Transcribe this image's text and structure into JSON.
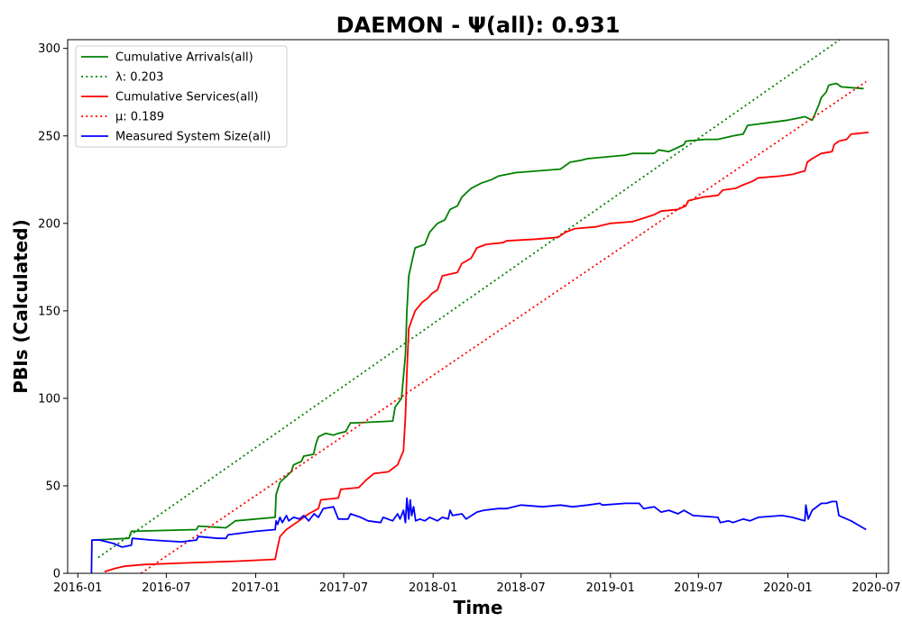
{
  "chart_data": {
    "type": "line",
    "title": "DAEMON -  Ψ(all): 0.931",
    "xlabel": "Time",
    "ylabel": "PBIs (Calculated)",
    "x_type": "date",
    "xlim": [
      "2015-12-11",
      "2020-07-26"
    ],
    "ylim": [
      0,
      305
    ],
    "x_ticks": [
      "2016-01",
      "2016-07",
      "2017-01",
      "2017-07",
      "2018-01",
      "2018-07",
      "2019-01",
      "2019-07",
      "2020-01",
      "2020-07"
    ],
    "y_ticks": [
      0,
      50,
      100,
      150,
      200,
      250,
      300
    ],
    "legend_position": "top-left",
    "grid": false,
    "series": [
      {
        "name": "Cumulative Arrivals(all)",
        "color": "#008000",
        "style": "solid",
        "points": [
          [
            "2016-02-01",
            19
          ],
          [
            "2016-04-15",
            20
          ],
          [
            "2016-04-20",
            24
          ],
          [
            "2016-09-01",
            25
          ],
          [
            "2016-09-05",
            27
          ],
          [
            "2016-11-01",
            26
          ],
          [
            "2016-11-20",
            30
          ],
          [
            "2017-02-10",
            32
          ],
          [
            "2017-02-12",
            45
          ],
          [
            "2017-02-20",
            52
          ],
          [
            "2017-03-15",
            58
          ],
          [
            "2017-03-20",
            62
          ],
          [
            "2017-04-05",
            64
          ],
          [
            "2017-04-10",
            67
          ],
          [
            "2017-04-30",
            68
          ],
          [
            "2017-05-05",
            74
          ],
          [
            "2017-05-10",
            78
          ],
          [
            "2017-05-25",
            80
          ],
          [
            "2017-06-10",
            79
          ],
          [
            "2017-06-20",
            80
          ],
          [
            "2017-07-05",
            81
          ],
          [
            "2017-07-15",
            86
          ],
          [
            "2017-07-25",
            86
          ],
          [
            "2017-10-10",
            87
          ],
          [
            "2017-10-15",
            95
          ],
          [
            "2017-10-28",
            100
          ],
          [
            "2017-11-05",
            125
          ],
          [
            "2017-11-08",
            150
          ],
          [
            "2017-11-12",
            170
          ],
          [
            "2017-11-20",
            180
          ],
          [
            "2017-11-25",
            186
          ],
          [
            "2017-12-15",
            188
          ],
          [
            "2017-12-25",
            195
          ],
          [
            "2018-01-10",
            200
          ],
          [
            "2018-01-25",
            202
          ],
          [
            "2018-02-05",
            208
          ],
          [
            "2018-02-20",
            210
          ],
          [
            "2018-03-01",
            215
          ],
          [
            "2018-03-20",
            220
          ],
          [
            "2018-04-10",
            223
          ],
          [
            "2018-05-01",
            225
          ],
          [
            "2018-05-15",
            227
          ],
          [
            "2018-06-20",
            229
          ],
          [
            "2018-09-20",
            231
          ],
          [
            "2018-10-10",
            235
          ],
          [
            "2018-11-01",
            236
          ],
          [
            "2018-11-15",
            237
          ],
          [
            "2019-02-01",
            239
          ],
          [
            "2019-02-15",
            240
          ],
          [
            "2019-04-01",
            240
          ],
          [
            "2019-04-10",
            242
          ],
          [
            "2019-05-01",
            241
          ],
          [
            "2019-06-01",
            245
          ],
          [
            "2019-06-05",
            247
          ],
          [
            "2019-07-15",
            248
          ],
          [
            "2019-08-10",
            248
          ],
          [
            "2019-09-10",
            250
          ],
          [
            "2019-10-01",
            251
          ],
          [
            "2019-10-10",
            256
          ],
          [
            "2020-01-01",
            259
          ],
          [
            "2020-01-20",
            260
          ],
          [
            "2020-02-05",
            261
          ],
          [
            "2020-02-20",
            259
          ],
          [
            "2020-02-25",
            262
          ],
          [
            "2020-03-05",
            268
          ],
          [
            "2020-03-10",
            272
          ],
          [
            "2020-03-20",
            275
          ],
          [
            "2020-03-25",
            279
          ],
          [
            "2020-04-10",
            280
          ],
          [
            "2020-04-20",
            278
          ],
          [
            "2020-06-05",
            277
          ]
        ]
      },
      {
        "name": "λ: 0.203",
        "color": "#008000",
        "style": "dotted",
        "points": [
          [
            "2016-02-12",
            9
          ],
          [
            "2020-04-17",
            305
          ]
        ]
      },
      {
        "name": "Cumulative Services(all)",
        "color": "#ff0000",
        "style": "solid",
        "points": [
          [
            "2016-02-25",
            1
          ],
          [
            "2016-03-20",
            3
          ],
          [
            "2016-04-05",
            4
          ],
          [
            "2016-05-15",
            5
          ],
          [
            "2016-08-15",
            6
          ],
          [
            "2016-12-01",
            7
          ],
          [
            "2017-02-10",
            8
          ],
          [
            "2017-02-15",
            15
          ],
          [
            "2017-02-20",
            21
          ],
          [
            "2017-03-05",
            25
          ],
          [
            "2017-04-05",
            31
          ],
          [
            "2017-04-20",
            34
          ],
          [
            "2017-05-10",
            37
          ],
          [
            "2017-05-15",
            42
          ],
          [
            "2017-06-20",
            43
          ],
          [
            "2017-06-25",
            48
          ],
          [
            "2017-08-01",
            49
          ],
          [
            "2017-08-15",
            53
          ],
          [
            "2017-09-01",
            57
          ],
          [
            "2017-10-01",
            58
          ],
          [
            "2017-10-20",
            62
          ],
          [
            "2017-11-01",
            70
          ],
          [
            "2017-11-05",
            90
          ],
          [
            "2017-11-08",
            115
          ],
          [
            "2017-11-12",
            140
          ],
          [
            "2017-11-25",
            150
          ],
          [
            "2017-12-10",
            155
          ],
          [
            "2017-12-20",
            157
          ],
          [
            "2017-12-30",
            160
          ],
          [
            "2018-01-10",
            162
          ],
          [
            "2018-01-20",
            170
          ],
          [
            "2018-02-20",
            172
          ],
          [
            "2018-03-01",
            177
          ],
          [
            "2018-03-20",
            180
          ],
          [
            "2018-04-01",
            186
          ],
          [
            "2018-04-20",
            188
          ],
          [
            "2018-05-25",
            189
          ],
          [
            "2018-06-01",
            190
          ],
          [
            "2018-08-01",
            191
          ],
          [
            "2018-09-15",
            192
          ],
          [
            "2018-10-01",
            195
          ],
          [
            "2018-10-20",
            197
          ],
          [
            "2018-12-01",
            198
          ],
          [
            "2019-01-01",
            200
          ],
          [
            "2019-02-15",
            201
          ],
          [
            "2019-03-10",
            203
          ],
          [
            "2019-04-01",
            205
          ],
          [
            "2019-04-15",
            207
          ],
          [
            "2019-05-20",
            208
          ],
          [
            "2019-06-05",
            210
          ],
          [
            "2019-06-10",
            213
          ],
          [
            "2019-07-10",
            215
          ],
          [
            "2019-08-10",
            216
          ],
          [
            "2019-08-20",
            219
          ],
          [
            "2019-09-15",
            220
          ],
          [
            "2019-10-01",
            222
          ],
          [
            "2019-10-20",
            224
          ],
          [
            "2019-11-01",
            226
          ],
          [
            "2019-12-15",
            227
          ],
          [
            "2020-01-10",
            228
          ],
          [
            "2020-02-05",
            230
          ],
          [
            "2020-02-10",
            235
          ],
          [
            "2020-02-20",
            237
          ],
          [
            "2020-03-10",
            240
          ],
          [
            "2020-04-01",
            241
          ],
          [
            "2020-04-05",
            245
          ],
          [
            "2020-04-15",
            247
          ],
          [
            "2020-05-01",
            248
          ],
          [
            "2020-05-10",
            251
          ],
          [
            "2020-06-15",
            252
          ]
        ]
      },
      {
        "name": "μ: 0.189",
        "color": "#ff0000",
        "style": "dotted",
        "points": [
          [
            "2016-05-10",
            0
          ],
          [
            "2020-06-10",
            281
          ]
        ]
      },
      {
        "name": "Measured System Size(all)",
        "color": "#0000ff",
        "style": "solid",
        "points": [
          [
            "2016-01-29",
            0
          ],
          [
            "2016-01-30",
            19
          ],
          [
            "2016-02-15",
            19
          ],
          [
            "2016-03-15",
            17
          ],
          [
            "2016-04-01",
            15
          ],
          [
            "2016-04-20",
            16
          ],
          [
            "2016-04-22",
            20
          ],
          [
            "2016-06-01",
            19
          ],
          [
            "2016-08-01",
            18
          ],
          [
            "2016-09-01",
            19
          ],
          [
            "2016-09-05",
            21
          ],
          [
            "2016-10-15",
            20
          ],
          [
            "2016-11-01",
            20
          ],
          [
            "2016-11-05",
            22
          ],
          [
            "2017-01-01",
            24
          ],
          [
            "2017-02-10",
            25
          ],
          [
            "2017-02-12",
            30
          ],
          [
            "2017-02-15",
            28
          ],
          [
            "2017-02-20",
            32
          ],
          [
            "2017-02-25",
            29
          ],
          [
            "2017-03-05",
            33
          ],
          [
            "2017-03-10",
            30
          ],
          [
            "2017-03-20",
            32
          ],
          [
            "2017-04-01",
            31
          ],
          [
            "2017-04-10",
            33
          ],
          [
            "2017-04-20",
            30
          ],
          [
            "2017-05-01",
            34
          ],
          [
            "2017-05-10",
            32
          ],
          [
            "2017-05-20",
            37
          ],
          [
            "2017-06-10",
            38
          ],
          [
            "2017-06-20",
            31
          ],
          [
            "2017-07-10",
            31
          ],
          [
            "2017-07-15",
            34
          ],
          [
            "2017-07-25",
            33
          ],
          [
            "2017-08-05",
            32
          ],
          [
            "2017-08-20",
            30
          ],
          [
            "2017-09-15",
            29
          ],
          [
            "2017-09-20",
            32
          ],
          [
            "2017-10-10",
            30
          ],
          [
            "2017-10-20",
            34
          ],
          [
            "2017-10-25",
            31
          ],
          [
            "2017-11-01",
            36
          ],
          [
            "2017-11-05",
            29
          ],
          [
            "2017-11-08",
            43
          ],
          [
            "2017-11-12",
            31
          ],
          [
            "2017-11-15",
            42
          ],
          [
            "2017-11-18",
            33
          ],
          [
            "2017-11-22",
            38
          ],
          [
            "2017-11-26",
            30
          ],
          [
            "2017-12-05",
            31
          ],
          [
            "2017-12-15",
            30
          ],
          [
            "2017-12-25",
            32
          ],
          [
            "2018-01-10",
            30
          ],
          [
            "2018-01-20",
            32
          ],
          [
            "2018-02-01",
            31
          ],
          [
            "2018-02-05",
            36
          ],
          [
            "2018-02-10",
            33
          ],
          [
            "2018-03-01",
            34
          ],
          [
            "2018-03-10",
            31
          ],
          [
            "2018-04-01",
            35
          ],
          [
            "2018-04-15",
            36
          ],
          [
            "2018-05-15",
            37
          ],
          [
            "2018-06-01",
            37
          ],
          [
            "2018-07-01",
            39
          ],
          [
            "2018-08-15",
            38
          ],
          [
            "2018-09-20",
            39
          ],
          [
            "2018-10-15",
            38
          ],
          [
            "2018-11-15",
            39
          ],
          [
            "2018-12-10",
            40
          ],
          [
            "2018-12-15",
            39
          ],
          [
            "2019-02-01",
            40
          ],
          [
            "2019-03-01",
            40
          ],
          [
            "2019-03-10",
            37
          ],
          [
            "2019-04-01",
            38
          ],
          [
            "2019-04-15",
            35
          ],
          [
            "2019-05-01",
            36
          ],
          [
            "2019-05-20",
            34
          ],
          [
            "2019-06-01",
            36
          ],
          [
            "2019-06-20",
            33
          ],
          [
            "2019-08-10",
            32
          ],
          [
            "2019-08-15",
            29
          ],
          [
            "2019-09-01",
            30
          ],
          [
            "2019-09-10",
            29
          ],
          [
            "2019-10-01",
            31
          ],
          [
            "2019-10-15",
            30
          ],
          [
            "2019-11-01",
            32
          ],
          [
            "2019-12-20",
            33
          ],
          [
            "2020-01-10",
            32
          ],
          [
            "2020-02-05",
            30
          ],
          [
            "2020-02-07",
            39
          ],
          [
            "2020-02-12",
            31
          ],
          [
            "2020-02-20",
            36
          ],
          [
            "2020-03-10",
            40
          ],
          [
            "2020-03-20",
            40
          ],
          [
            "2020-04-01",
            41
          ],
          [
            "2020-04-10",
            41
          ],
          [
            "2020-04-15",
            33
          ],
          [
            "2020-05-10",
            30
          ],
          [
            "2020-06-10",
            25
          ]
        ]
      }
    ]
  }
}
